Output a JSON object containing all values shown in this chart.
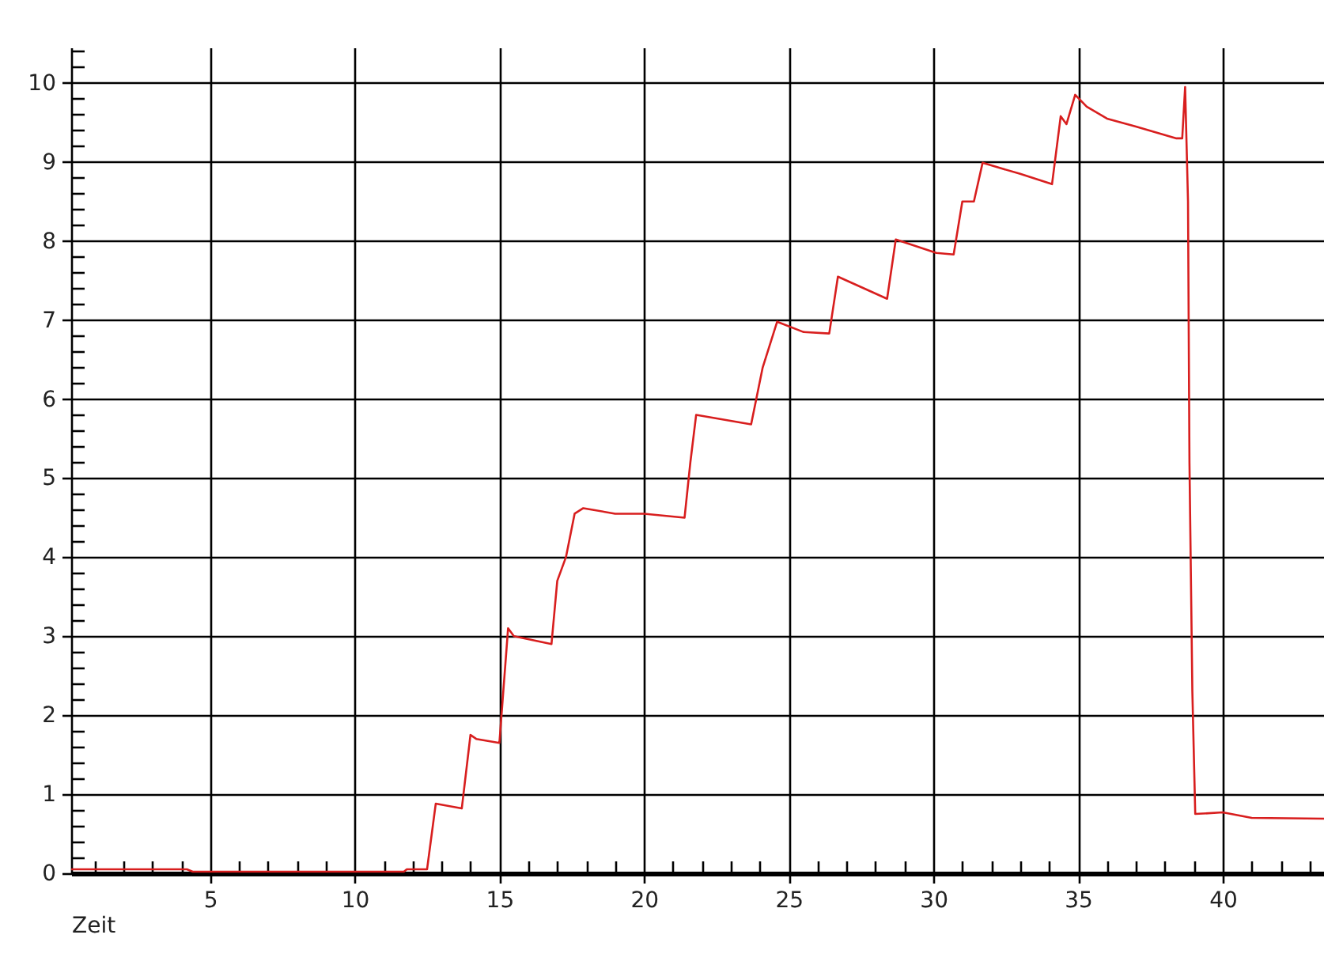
{
  "chart_data": {
    "type": "line",
    "xlabel": "Zeit",
    "grid": true,
    "legend": false,
    "marker": "none",
    "line_style": "solid",
    "xlim": [
      0.2,
      43.5
    ],
    "ylim": [
      0,
      10.45
    ],
    "xticks": [
      {
        "value": 1,
        "label": null
      },
      {
        "value": 2,
        "label": null
      },
      {
        "value": 3,
        "label": null
      },
      {
        "value": 4,
        "label": null
      },
      5,
      {
        "value": 6,
        "label": null
      },
      {
        "value": 7,
        "label": null
      },
      {
        "value": 8,
        "label": null
      },
      {
        "value": 9,
        "label": null
      },
      10,
      {
        "value": 11,
        "label": null
      },
      {
        "value": 12,
        "label": null
      },
      {
        "value": 13,
        "label": null
      },
      {
        "value": 14,
        "label": null
      },
      15,
      {
        "value": 16,
        "label": null
      },
      {
        "value": 17,
        "label": null
      },
      {
        "value": 18,
        "label": null
      },
      {
        "value": 19,
        "label": null
      },
      20,
      {
        "value": 21,
        "label": null
      },
      {
        "value": 22,
        "label": null
      },
      {
        "value": 23,
        "label": null
      },
      {
        "value": 24,
        "label": null
      },
      25,
      {
        "value": 26,
        "label": null
      },
      {
        "value": 27,
        "label": null
      },
      {
        "value": 28,
        "label": null
      },
      {
        "value": 29,
        "label": null
      },
      30,
      {
        "value": 31,
        "label": null
      },
      {
        "value": 32,
        "label": null
      },
      {
        "value": 33,
        "label": null
      },
      {
        "value": 34,
        "label": null
      },
      35,
      {
        "value": 36,
        "label": null
      },
      {
        "value": 37,
        "label": null
      },
      {
        "value": 38,
        "label": null
      },
      {
        "value": 39,
        "label": null
      },
      40,
      {
        "value": 41,
        "label": null
      },
      {
        "value": 42,
        "label": null
      },
      {
        "value": 43,
        "label": null
      }
    ],
    "yticks": [
      0,
      {
        "value": 0.2,
        "label": null
      },
      {
        "value": 0.4,
        "label": null
      },
      {
        "value": 0.6,
        "label": null
      },
      {
        "value": 0.8,
        "label": null
      },
      1,
      {
        "value": 1.2,
        "label": null
      },
      {
        "value": 1.4,
        "label": null
      },
      {
        "value": 1.6,
        "label": null
      },
      {
        "value": 1.8,
        "label": null
      },
      2,
      {
        "value": 2.2,
        "label": null
      },
      {
        "value": 2.4,
        "label": null
      },
      {
        "value": 2.6,
        "label": null
      },
      {
        "value": 2.8,
        "label": null
      },
      3,
      {
        "value": 3.2,
        "label": null
      },
      {
        "value": 3.4,
        "label": null
      },
      {
        "value": 3.6,
        "label": null
      },
      {
        "value": 3.8,
        "label": null
      },
      4,
      {
        "value": 4.2,
        "label": null
      },
      {
        "value": 4.4,
        "label": null
      },
      {
        "value": 4.6,
        "label": null
      },
      {
        "value": 4.8,
        "label": null
      },
      5,
      {
        "value": 5.2,
        "label": null
      },
      {
        "value": 5.4,
        "label": null
      },
      {
        "value": 5.6,
        "label": null
      },
      {
        "value": 5.8,
        "label": null
      },
      6,
      {
        "value": 6.2,
        "label": null
      },
      {
        "value": 6.4,
        "label": null
      },
      {
        "value": 6.6,
        "label": null
      },
      {
        "value": 6.8,
        "label": null
      },
      7,
      {
        "value": 7.2,
        "label": null
      },
      {
        "value": 7.4,
        "label": null
      },
      {
        "value": 7.6,
        "label": null
      },
      {
        "value": 7.8,
        "label": null
      },
      8,
      {
        "value": 8.2,
        "label": null
      },
      {
        "value": 8.4,
        "label": null
      },
      {
        "value": 8.6,
        "label": null
      },
      {
        "value": 8.8,
        "label": null
      },
      9,
      {
        "value": 9.2,
        "label": null
      },
      {
        "value": 9.4,
        "label": null
      },
      {
        "value": 9.6,
        "label": null
      },
      {
        "value": 9.8,
        "label": null
      },
      10,
      {
        "value": 10.2,
        "label": null
      },
      {
        "value": 10.4,
        "label": null
      }
    ],
    "series": [
      {
        "color": "#d81e1e",
        "x": [
          0.2,
          4.2,
          4.4,
          11.7,
          11.8,
          12.5,
          12.8,
          13.7,
          14.0,
          14.2,
          15.0,
          15.3,
          15.5,
          16.8,
          17.0,
          17.3,
          17.6,
          17.9,
          19.0,
          20.0,
          21.4,
          21.6,
          21.8,
          23.7,
          24.1,
          24.6,
          25.5,
          26.4,
          26.7,
          28.4,
          28.7,
          30.1,
          30.7,
          31.0,
          31.4,
          31.7,
          33.0,
          34.1,
          34.4,
          34.6,
          34.9,
          35.3,
          36.0,
          37.0,
          38.4,
          38.6,
          38.7,
          38.8,
          38.85,
          38.95,
          39.05,
          40.0,
          41.0,
          43.5
        ],
        "values": [
          0.05,
          0.05,
          0.02,
          0.02,
          0.05,
          0.05,
          0.88,
          0.82,
          1.75,
          1.7,
          1.65,
          3.1,
          3.0,
          2.9,
          3.7,
          4.0,
          4.55,
          4.62,
          4.55,
          4.55,
          4.5,
          5.2,
          5.8,
          5.68,
          6.4,
          6.98,
          6.85,
          6.83,
          7.55,
          7.27,
          8.02,
          7.85,
          7.83,
          8.5,
          8.5,
          8.99,
          8.85,
          8.72,
          9.58,
          9.48,
          9.85,
          9.7,
          9.55,
          9.45,
          9.3,
          9.3,
          9.95,
          8.5,
          5.2,
          2.3,
          0.75,
          0.77,
          0.7,
          0.69
        ]
      }
    ]
  }
}
